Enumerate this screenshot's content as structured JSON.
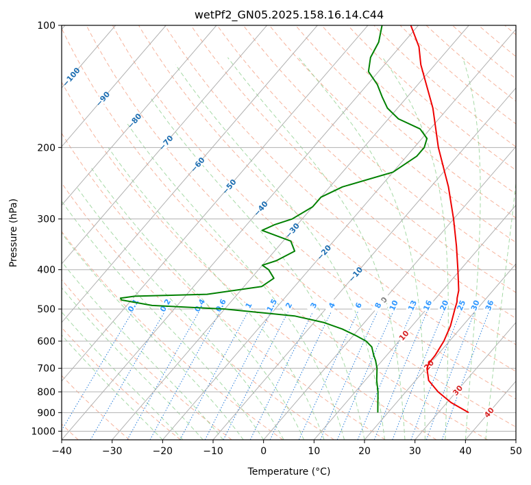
{
  "chart_data": {
    "type": "line",
    "title": "wetPf2_GN05.2025.158.16.14.C44",
    "xlabel": "Temperature (°C)",
    "ylabel": "Pressure (hPa)",
    "xlim": [
      -40,
      50
    ],
    "ylim": [
      1050,
      100
    ],
    "y_scale": "log",
    "skew": true,
    "x_ticks": [
      -40,
      -30,
      -20,
      -10,
      0,
      10,
      20,
      30,
      40,
      50
    ],
    "x_tick_labels": [
      "−40",
      "−30",
      "−20",
      "−10",
      "0",
      "10",
      "20",
      "30",
      "40",
      "50"
    ],
    "y_ticks": [
      100,
      200,
      300,
      400,
      500,
      600,
      700,
      800,
      900,
      1000
    ],
    "y_tick_labels": [
      "100",
      "200",
      "300",
      "400",
      "500",
      "600",
      "700",
      "800",
      "900",
      "1000"
    ],
    "grid": true,
    "series": [
      {
        "role": "temperature",
        "color": "#ee0000",
        "points": [
          [
            900,
            36.0
          ],
          [
            850,
            30.8
          ],
          [
            800,
            26.4
          ],
          [
            750,
            22.6
          ],
          [
            700,
            20.2
          ],
          [
            680,
            19.7
          ],
          [
            650,
            19.6
          ],
          [
            600,
            18.9
          ],
          [
            550,
            17.6
          ],
          [
            500,
            15.6
          ],
          [
            480,
            14.8
          ],
          [
            470,
            14.2
          ],
          [
            450,
            13.2
          ],
          [
            400,
            9.5
          ],
          [
            350,
            5.2
          ],
          [
            300,
            0.0
          ],
          [
            250,
            -6.5
          ],
          [
            200,
            -15.2
          ],
          [
            160,
            -23.0
          ],
          [
            140,
            -28.3
          ],
          [
            125,
            -32.8
          ],
          [
            113,
            -36.2
          ],
          [
            100,
            -41.5
          ]
        ]
      },
      {
        "role": "dewpoint",
        "color": "#008000",
        "points": [
          [
            900,
            18.0
          ],
          [
            850,
            16.3
          ],
          [
            800,
            14.5
          ],
          [
            750,
            12.3
          ],
          [
            700,
            10.3
          ],
          [
            670,
            8.7
          ],
          [
            650,
            7.4
          ],
          [
            620,
            5.6
          ],
          [
            600,
            3.5
          ],
          [
            580,
            0.3
          ],
          [
            560,
            -3.3
          ],
          [
            540,
            -8.0
          ],
          [
            520,
            -15.0
          ],
          [
            500,
            -30.0
          ],
          [
            490,
            -45.0
          ],
          [
            475,
            -52.0
          ],
          [
            470,
            -52.5
          ],
          [
            465,
            -50.0
          ],
          [
            460,
            -36.0
          ],
          [
            440,
            -26.5
          ],
          [
            420,
            -25.5
          ],
          [
            400,
            -28.0
          ],
          [
            390,
            -30.0
          ],
          [
            380,
            -28.0
          ],
          [
            360,
            -26.0
          ],
          [
            340,
            -28.5
          ],
          [
            320,
            -36.0
          ],
          [
            310,
            -34.5
          ],
          [
            300,
            -32.0
          ],
          [
            280,
            -30.0
          ],
          [
            265,
            -30.0
          ],
          [
            250,
            -27.5
          ],
          [
            230,
            -20.0
          ],
          [
            210,
            -18.0
          ],
          [
            200,
            -18.0
          ],
          [
            190,
            -19.0
          ],
          [
            180,
            -22.0
          ],
          [
            170,
            -28.0
          ],
          [
            160,
            -32.0
          ],
          [
            150,
            -35.0
          ],
          [
            140,
            -38.0
          ],
          [
            130,
            -42.0
          ],
          [
            120,
            -44.0
          ],
          [
            110,
            -45.0
          ],
          [
            100,
            -47.2
          ]
        ]
      }
    ],
    "isotherm_labels": [
      "−100",
      "−90",
      "−80",
      "−70",
      "−60",
      "−50",
      "−40",
      "−30",
      "−20",
      "−10",
      "0",
      "10",
      "20",
      "30",
      "40"
    ],
    "mixing_ratio_labels": [
      "0.1",
      "0.2",
      "0.4",
      "0.6",
      "1",
      "1.5",
      "2",
      "3",
      "4",
      "6",
      "8",
      "10",
      "13",
      "16",
      "20",
      "25",
      "30",
      "36"
    ],
    "colors": {
      "isotherm_grid": "#b0b0b0",
      "dry_adiabat": "#f4a58a",
      "moist_adiabat": "#8fcf8f",
      "mixing_ratio": "#1f78d8",
      "isotherm_label_cold": "#1f6fb2",
      "isotherm_label_zero": "#808080",
      "isotherm_label_warm": "#d62728",
      "mixing_ratio_label": "#3399ff"
    }
  }
}
